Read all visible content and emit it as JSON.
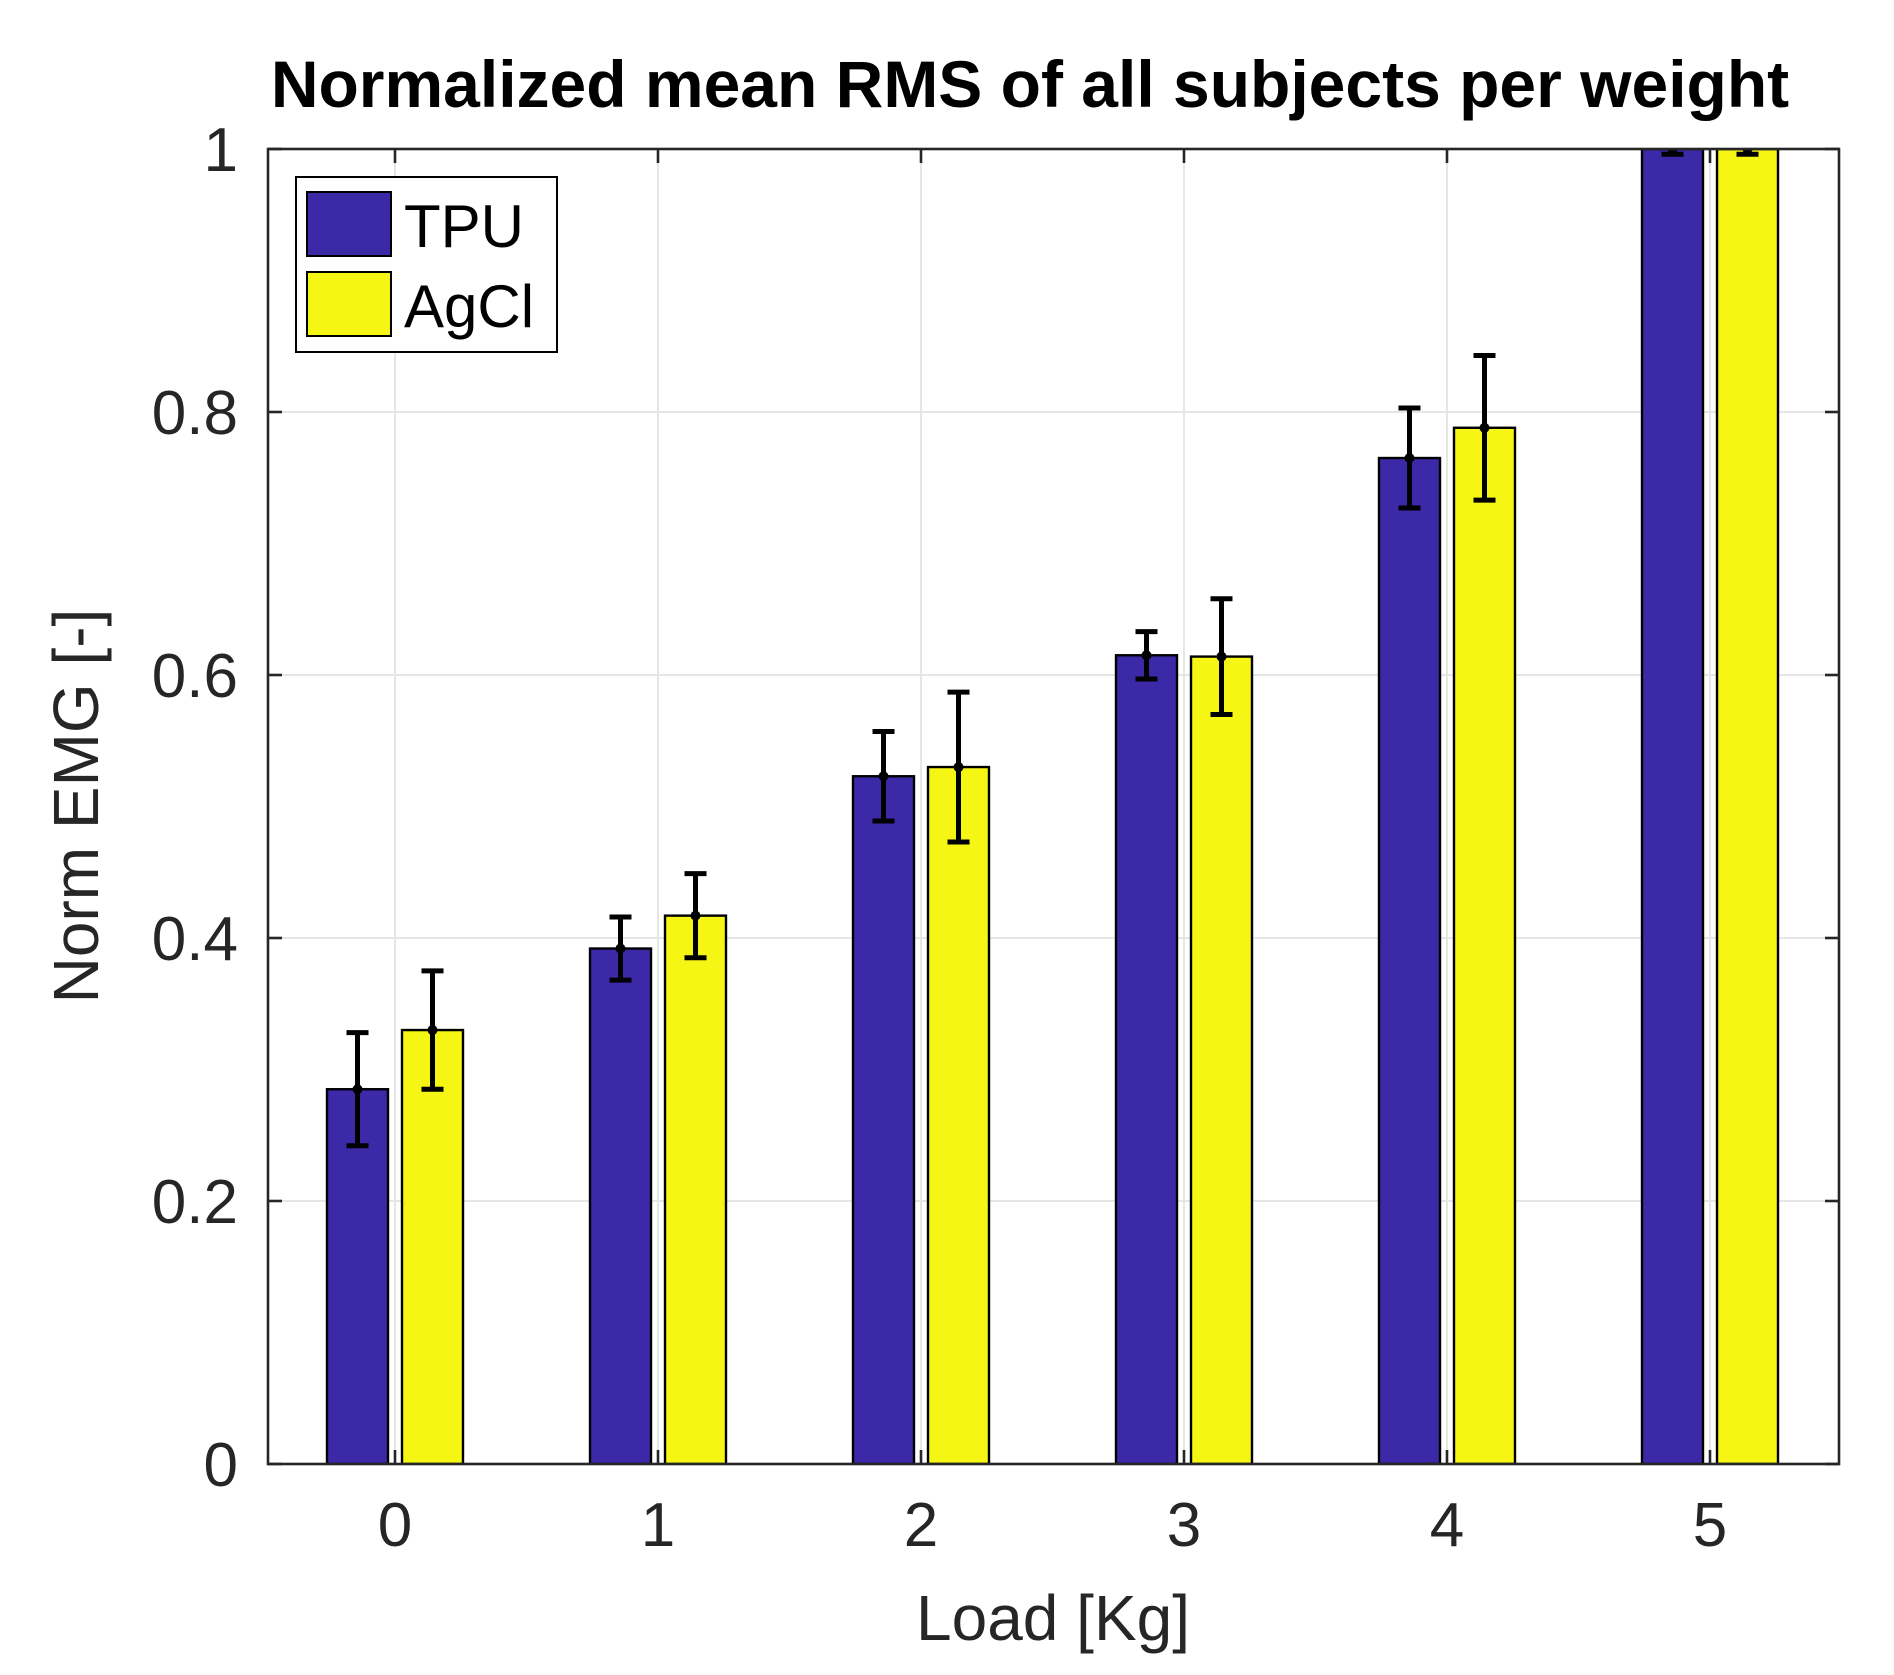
{
  "figure": {
    "title": "Normalized mean RMS of all subjects per weight",
    "xlabel": "Load [Kg]",
    "ylabel": "Norm EMG [-]"
  },
  "legend": {
    "position": "top-left",
    "items": [
      {
        "label": "TPU",
        "color": "#3B29A8"
      },
      {
        "label": "AgCl",
        "color": "#F6F614"
      }
    ]
  },
  "colors": {
    "tpu_bar": "#3B29A8",
    "agcl_bar": "#F6F614",
    "bar_edge": "#000000",
    "error_bar": "#000000",
    "grid_line": "#E6E6E6",
    "axis_box": "#262626",
    "tick_text": "#262626",
    "background": "#FFFFFF"
  },
  "chart_data": {
    "type": "bar",
    "title": "Normalized mean RMS of all subjects per weight",
    "xlabel": "Load [Kg]",
    "ylabel": "Norm EMG [-]",
    "categories": [
      "0",
      "1",
      "2",
      "3",
      "4",
      "5"
    ],
    "series": [
      {
        "name": "TPU",
        "color": "#3B29A8",
        "values": [
          0.285,
          0.392,
          0.523,
          0.615,
          0.765,
          1.0
        ],
        "errors": [
          0.043,
          0.024,
          0.034,
          0.018,
          0.038,
          0.004
        ]
      },
      {
        "name": "AgCl",
        "color": "#F6F614",
        "values": [
          0.33,
          0.417,
          0.53,
          0.614,
          0.788,
          1.0
        ],
        "errors": [
          0.045,
          0.032,
          0.057,
          0.044,
          0.055,
          0.004
        ]
      }
    ],
    "ylim": [
      0,
      1
    ],
    "xlim": [
      -0.5,
      5.5
    ],
    "yticks": [
      0,
      0.2,
      0.4,
      0.6,
      0.8,
      1
    ],
    "ytick_labels": [
      "0",
      "0.2",
      "0.4",
      "0.6",
      "0.8",
      "1"
    ],
    "grid": true,
    "grid_axes": "both",
    "legend_position": "top-left",
    "error_bars": true
  }
}
